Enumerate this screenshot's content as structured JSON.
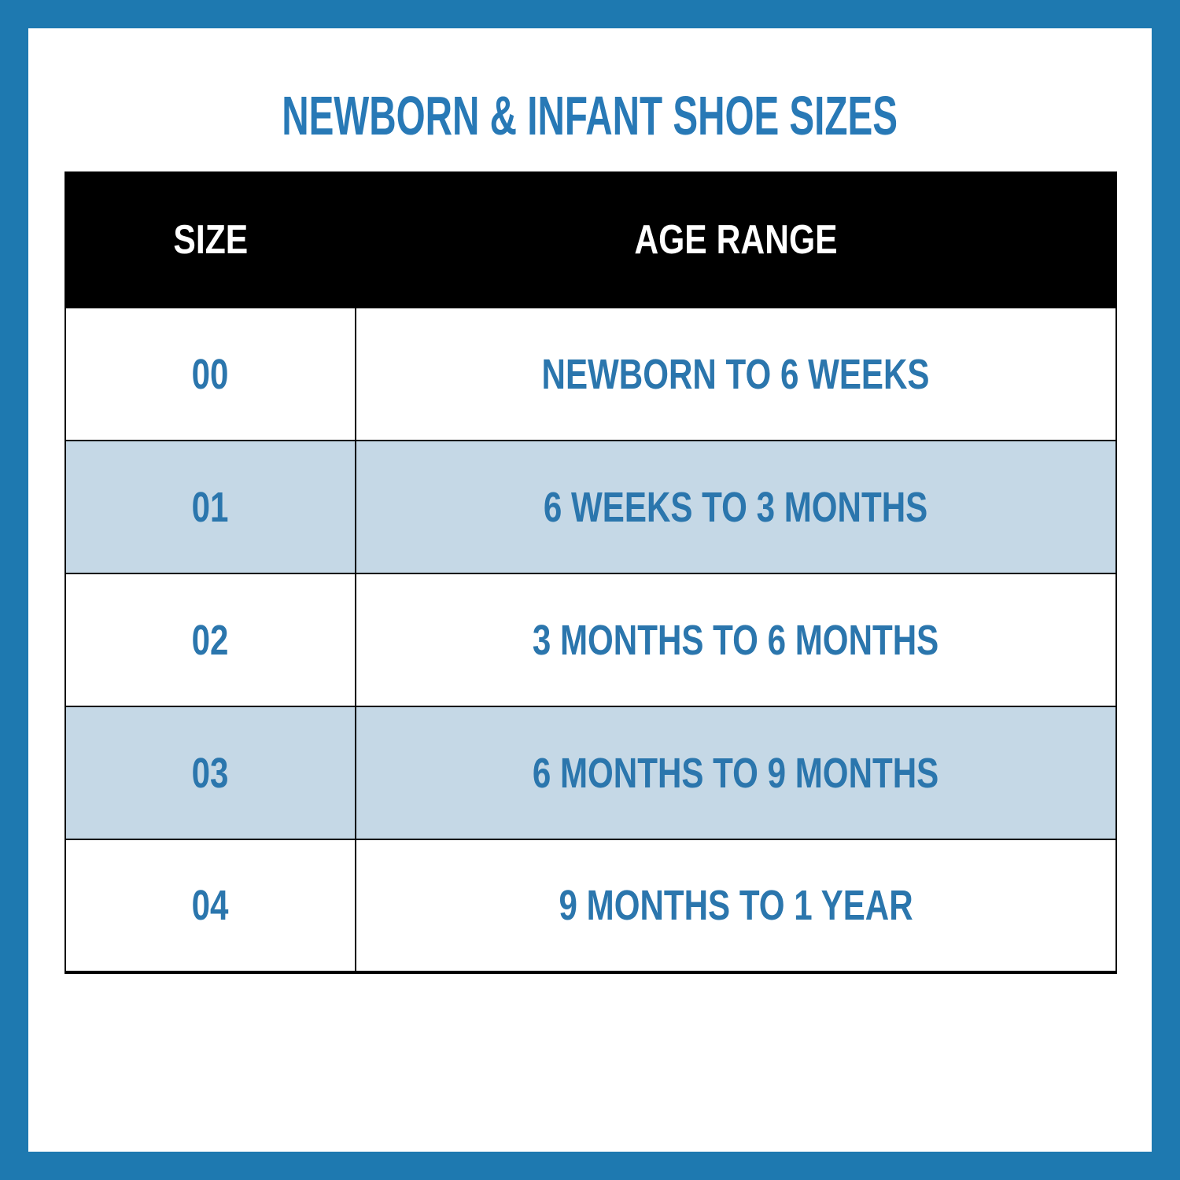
{
  "chart_data": {
    "type": "table",
    "title": "NEWBORN & INFANT SHOE SIZES",
    "columns": [
      "SIZE",
      "AGE RANGE"
    ],
    "rows": [
      [
        "00",
        "NEWBORN TO 6 WEEKS"
      ],
      [
        "01",
        "6 WEEKS TO 3 MONTHS"
      ],
      [
        "02",
        "3 MONTHS TO 6 MONTHS"
      ],
      [
        "03",
        "6 MONTHS TO 9 MONTHS"
      ],
      [
        "04",
        "9 MONTHS TO 1 YEAR"
      ]
    ],
    "layout_hints": {
      "header_style": "black band, white bold text",
      "zebra_striping": "rows 01 and 03 shaded light blue",
      "grid": "on"
    }
  },
  "colors": {
    "frame_blue": "#1e79b0",
    "title_blue": "#2879b6",
    "row_text_blue": "#2b76ad",
    "zebra_row_bg": "#c5d8e6",
    "header_bg": "#000000",
    "header_text": "#ffffff",
    "grid_line": "#000000",
    "row_bg": "#ffffff"
  }
}
